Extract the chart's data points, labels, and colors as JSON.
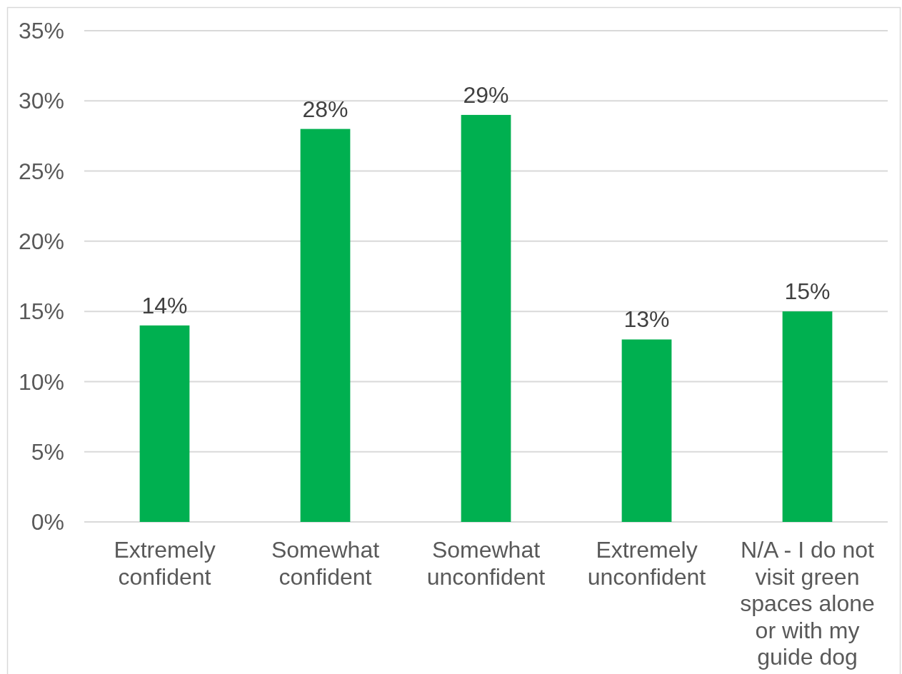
{
  "chart_data": {
    "type": "bar",
    "categories": [
      "Extremely confident",
      "Somewhat confident",
      "Somewhat unconfident",
      "Extremely unconfident",
      "N/A - I do not visit green spaces alone or with my guide dog"
    ],
    "values": [
      14,
      28,
      29,
      13,
      15
    ],
    "color": "#00b050",
    "value_labels": [
      "14%",
      "28%",
      "29%",
      "13%",
      "15%"
    ],
    "ylim": [
      0,
      35
    ],
    "yticks": [
      {
        "value": 0,
        "label": "0%"
      },
      {
        "value": 5,
        "label": "5%"
      },
      {
        "value": 10,
        "label": "10%"
      },
      {
        "value": 15,
        "label": "15%"
      },
      {
        "value": 20,
        "label": "20%"
      },
      {
        "value": 25,
        "label": "25%"
      },
      {
        "value": 30,
        "label": "30%"
      },
      {
        "value": 35,
        "label": "35%"
      }
    ],
    "grid": "y"
  }
}
